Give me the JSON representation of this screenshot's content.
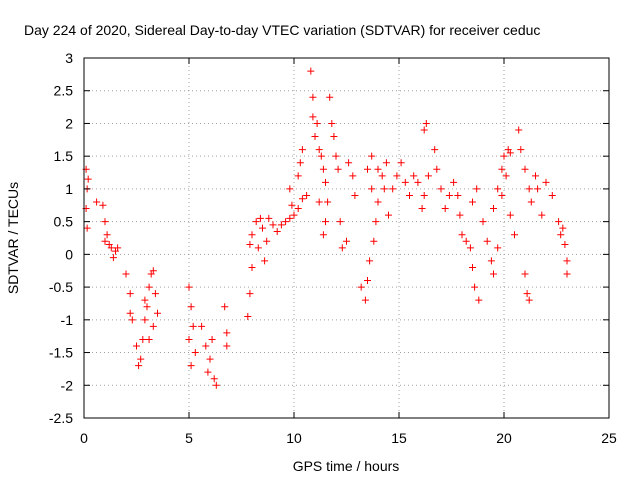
{
  "chart_data": {
    "type": "scatter",
    "title": "Day 224 of 2020, Sidereal Day-to-day VTEC variation (SDTVAR) for receiver ceduc",
    "xlabel": "GPS time / hours",
    "ylabel": "SDTVAR / TECUs",
    "xlim": [
      0,
      25
    ],
    "ylim": [
      -2.5,
      3
    ],
    "xticks": [
      0,
      5,
      10,
      15,
      20,
      25
    ],
    "xtick_labels": [
      "0",
      "5",
      "10",
      "15",
      "20",
      "25"
    ],
    "yticks": [
      -2.5,
      -2,
      -1.5,
      -1,
      -0.5,
      0,
      0.5,
      1,
      1.5,
      2,
      2.5,
      3
    ],
    "ytick_labels": [
      "-2.5",
      "-2",
      "-1.5",
      "-1",
      "-0.5",
      "0",
      "0.5",
      "1",
      "1.5",
      "2",
      "2.5",
      "3"
    ],
    "grid": true,
    "marker": "+",
    "marker_color": "#ff0000",
    "series": [
      {
        "name": "SDTVAR",
        "points": [
          [
            0.1,
            1.3
          ],
          [
            0.15,
            1.0
          ],
          [
            0.2,
            1.15
          ],
          [
            0.1,
            0.7
          ],
          [
            0.15,
            0.4
          ],
          [
            0.6,
            0.8
          ],
          [
            0.9,
            0.75
          ],
          [
            1.0,
            0.5
          ],
          [
            1.1,
            0.3
          ],
          [
            1.0,
            0.2
          ],
          [
            1.2,
            0.15
          ],
          [
            1.3,
            0.1
          ],
          [
            1.5,
            0.05
          ],
          [
            1.6,
            0.1
          ],
          [
            1.4,
            -0.05
          ],
          [
            2.0,
            -0.3
          ],
          [
            2.2,
            -0.6
          ],
          [
            2.2,
            -0.9
          ],
          [
            2.3,
            -1.0
          ],
          [
            2.5,
            -1.4
          ],
          [
            2.6,
            -1.7
          ],
          [
            2.7,
            -1.6
          ],
          [
            2.8,
            -1.3
          ],
          [
            2.9,
            -1.0
          ],
          [
            3.0,
            -0.8
          ],
          [
            3.1,
            -0.5
          ],
          [
            3.2,
            -0.3
          ],
          [
            3.3,
            -0.25
          ],
          [
            3.4,
            -0.6
          ],
          [
            3.5,
            -0.9
          ],
          [
            3.3,
            -1.1
          ],
          [
            3.1,
            -1.3
          ],
          [
            2.9,
            -0.7
          ],
          [
            5.0,
            -0.5
          ],
          [
            5.1,
            -0.8
          ],
          [
            5.2,
            -1.1
          ],
          [
            5.0,
            -1.3
          ],
          [
            5.1,
            -1.7
          ],
          [
            5.3,
            -1.5
          ],
          [
            5.6,
            -1.1
          ],
          [
            5.8,
            -1.4
          ],
          [
            5.9,
            -1.8
          ],
          [
            6.0,
            -1.6
          ],
          [
            6.2,
            -1.9
          ],
          [
            6.3,
            -2.0
          ],
          [
            6.1,
            -1.3
          ],
          [
            6.7,
            -0.8
          ],
          [
            6.8,
            -1.2
          ],
          [
            6.8,
            -1.4
          ],
          [
            7.8,
            -0.95
          ],
          [
            7.9,
            -0.6
          ],
          [
            8.0,
            -0.2
          ],
          [
            7.9,
            0.15
          ],
          [
            8.0,
            0.3
          ],
          [
            8.2,
            0.5
          ],
          [
            8.4,
            0.55
          ],
          [
            8.5,
            0.4
          ],
          [
            8.3,
            0.1
          ],
          [
            8.6,
            -0.1
          ],
          [
            8.7,
            0.2
          ],
          [
            8.8,
            0.55
          ],
          [
            9.0,
            0.45
          ],
          [
            9.2,
            0.35
          ],
          [
            9.4,
            0.45
          ],
          [
            9.6,
            0.5
          ],
          [
            9.8,
            0.55
          ],
          [
            9.9,
            0.75
          ],
          [
            10.0,
            0.6
          ],
          [
            10.2,
            0.7
          ],
          [
            10.4,
            0.85
          ],
          [
            10.6,
            0.9
          ],
          [
            9.8,
            1.0
          ],
          [
            10.2,
            1.2
          ],
          [
            10.3,
            1.4
          ],
          [
            10.4,
            1.6
          ],
          [
            10.8,
            2.8
          ],
          [
            10.9,
            2.4
          ],
          [
            10.9,
            2.1
          ],
          [
            11.0,
            1.8
          ],
          [
            11.1,
            2.0
          ],
          [
            11.2,
            1.6
          ],
          [
            11.3,
            1.5
          ],
          [
            11.4,
            1.3
          ],
          [
            11.5,
            1.1
          ],
          [
            11.6,
            0.8
          ],
          [
            11.5,
            0.5
          ],
          [
            11.4,
            0.3
          ],
          [
            11.2,
            0.8
          ],
          [
            11.7,
            2.4
          ],
          [
            11.8,
            2.0
          ],
          [
            11.9,
            1.8
          ],
          [
            12.0,
            1.5
          ],
          [
            12.1,
            1.3
          ],
          [
            12.2,
            0.5
          ],
          [
            12.3,
            0.1
          ],
          [
            12.5,
            0.2
          ],
          [
            12.6,
            1.4
          ],
          [
            12.8,
            1.2
          ],
          [
            12.9,
            0.9
          ],
          [
            13.2,
            -0.5
          ],
          [
            13.4,
            -0.7
          ],
          [
            13.5,
            -0.4
          ],
          [
            13.6,
            -0.1
          ],
          [
            13.8,
            0.2
          ],
          [
            13.9,
            0.5
          ],
          [
            14.0,
            0.8
          ],
          [
            13.7,
            1.0
          ],
          [
            13.5,
            1.3
          ],
          [
            13.7,
            1.5
          ],
          [
            14.0,
            1.3
          ],
          [
            14.2,
            1.2
          ],
          [
            14.4,
            1.4
          ],
          [
            14.3,
            1.0
          ],
          [
            14.5,
            0.6
          ],
          [
            14.7,
            1.0
          ],
          [
            14.9,
            1.2
          ],
          [
            15.1,
            1.4
          ],
          [
            15.3,
            1.1
          ],
          [
            15.5,
            0.9
          ],
          [
            15.7,
            1.2
          ],
          [
            15.9,
            1.1
          ],
          [
            16.1,
            0.7
          ],
          [
            16.2,
            0.9
          ],
          [
            16.4,
            1.2
          ],
          [
            16.2,
            1.9
          ],
          [
            16.3,
            2.0
          ],
          [
            16.7,
            1.6
          ],
          [
            16.8,
            1.3
          ],
          [
            17.0,
            1.0
          ],
          [
            17.2,
            0.7
          ],
          [
            17.4,
            0.9
          ],
          [
            17.6,
            1.1
          ],
          [
            17.8,
            0.9
          ],
          [
            17.9,
            0.6
          ],
          [
            18.0,
            0.3
          ],
          [
            18.2,
            0.2
          ],
          [
            18.4,
            0.1
          ],
          [
            18.5,
            -0.2
          ],
          [
            18.6,
            -0.5
          ],
          [
            18.8,
            -0.7
          ],
          [
            18.5,
            0.8
          ],
          [
            18.7,
            1.0
          ],
          [
            19.0,
            0.5
          ],
          [
            19.2,
            0.2
          ],
          [
            19.4,
            -0.1
          ],
          [
            19.5,
            -0.3
          ],
          [
            19.7,
            0.1
          ],
          [
            19.5,
            0.7
          ],
          [
            19.7,
            1.0
          ],
          [
            19.9,
            1.3
          ],
          [
            20.0,
            1.5
          ],
          [
            20.2,
            1.6
          ],
          [
            20.3,
            1.55
          ],
          [
            20.1,
            1.2
          ],
          [
            19.9,
            0.9
          ],
          [
            20.3,
            0.6
          ],
          [
            20.5,
            0.3
          ],
          [
            20.7,
            1.9
          ],
          [
            20.8,
            1.6
          ],
          [
            21.0,
            1.3
          ],
          [
            21.2,
            1.0
          ],
          [
            21.3,
            0.8
          ],
          [
            21.5,
            1.2
          ],
          [
            21.6,
            1.0
          ],
          [
            21.8,
            0.6
          ],
          [
            21.0,
            -0.3
          ],
          [
            21.1,
            -0.6
          ],
          [
            21.2,
            -0.7
          ],
          [
            22.0,
            1.1
          ],
          [
            22.3,
            0.9
          ],
          [
            22.6,
            0.5
          ],
          [
            22.7,
            0.3
          ],
          [
            22.9,
            0.15
          ],
          [
            23.0,
            -0.1
          ],
          [
            23.0,
            -0.3
          ],
          [
            22.8,
            0.4
          ]
        ]
      }
    ]
  }
}
